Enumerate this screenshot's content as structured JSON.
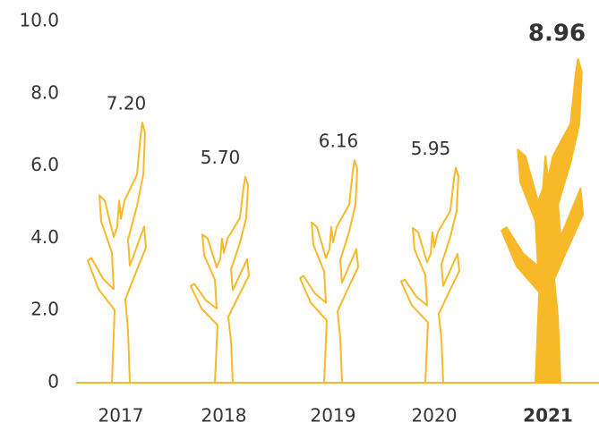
{
  "chart_data": {
    "type": "pictograph",
    "categories": [
      "2017",
      "2018",
      "2019",
      "2020",
      "2021"
    ],
    "values": [
      7.2,
      5.7,
      6.16,
      5.95,
      8.96
    ],
    "value_labels": [
      "7.20",
      "5.70",
      "6.16",
      "5.95",
      "8.96"
    ],
    "color": "#f7b928",
    "ylim": [
      0,
      10
    ],
    "yticks": [
      0,
      {
        "value": 2,
        "label": "2.0"
      },
      {
        "value": 4,
        "label": "4.0"
      },
      {
        "value": 6,
        "label": "6.0"
      },
      {
        "value": 8,
        "label": "8.0"
      },
      {
        "value": 10,
        "label": "10.0"
      }
    ]
  }
}
